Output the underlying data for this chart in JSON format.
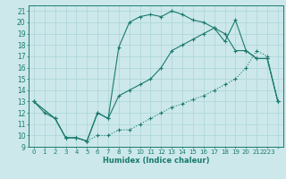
{
  "xlabel": "Humidex (Indice chaleur)",
  "bg_color": "#cce8ea",
  "grid_color": "#b0d8db",
  "line_color": "#1a7a6e",
  "xlim": [
    -0.5,
    23.5
  ],
  "ylim": [
    9,
    21.5
  ],
  "xtick_labels": [
    "0",
    "1",
    "2",
    "3",
    "4",
    "5",
    "6",
    "7",
    "8",
    "9",
    "10",
    "11",
    "12",
    "13",
    "14",
    "15",
    "16",
    "17",
    "18",
    "19",
    "20",
    "21",
    "2223"
  ],
  "yticks": [
    9,
    10,
    11,
    12,
    13,
    14,
    15,
    16,
    17,
    18,
    19,
    20,
    21
  ],
  "line1_x": [
    0,
    1,
    2,
    3,
    4,
    5,
    6,
    7,
    8,
    9,
    10,
    11,
    12,
    13,
    14,
    15,
    16,
    17,
    18,
    19,
    20,
    21,
    22,
    23
  ],
  "line1_y": [
    13,
    12,
    11.5,
    9.8,
    9.8,
    9.5,
    12,
    11.5,
    17.8,
    20,
    20.5,
    20.7,
    20.5,
    21,
    20.7,
    20.2,
    20,
    19.5,
    18.3,
    20.2,
    17.5,
    16.8,
    16.8,
    13
  ],
  "line2_x": [
    0,
    2,
    3,
    4,
    5,
    6,
    7,
    8,
    9,
    10,
    11,
    12,
    13,
    14,
    15,
    16,
    17,
    18,
    19,
    20,
    21,
    22,
    23
  ],
  "line2_y": [
    13,
    11.5,
    9.8,
    9.8,
    9.5,
    12,
    11.5,
    13.5,
    14,
    14.5,
    15,
    16,
    17.5,
    18,
    18.5,
    19,
    19.5,
    19,
    17.5,
    17.5,
    16.8,
    16.8,
    13
  ],
  "line3_x": [
    0,
    2,
    3,
    4,
    5,
    6,
    7,
    8,
    9,
    10,
    11,
    12,
    13,
    14,
    15,
    16,
    17,
    18,
    19,
    20,
    21,
    22,
    23
  ],
  "line3_y": [
    13,
    11.5,
    9.8,
    9.8,
    9.5,
    10,
    10,
    10.5,
    10.5,
    11,
    11.5,
    12,
    12.5,
    12.8,
    13.2,
    13.5,
    14,
    14.5,
    15,
    16,
    17.5,
    17,
    13
  ]
}
